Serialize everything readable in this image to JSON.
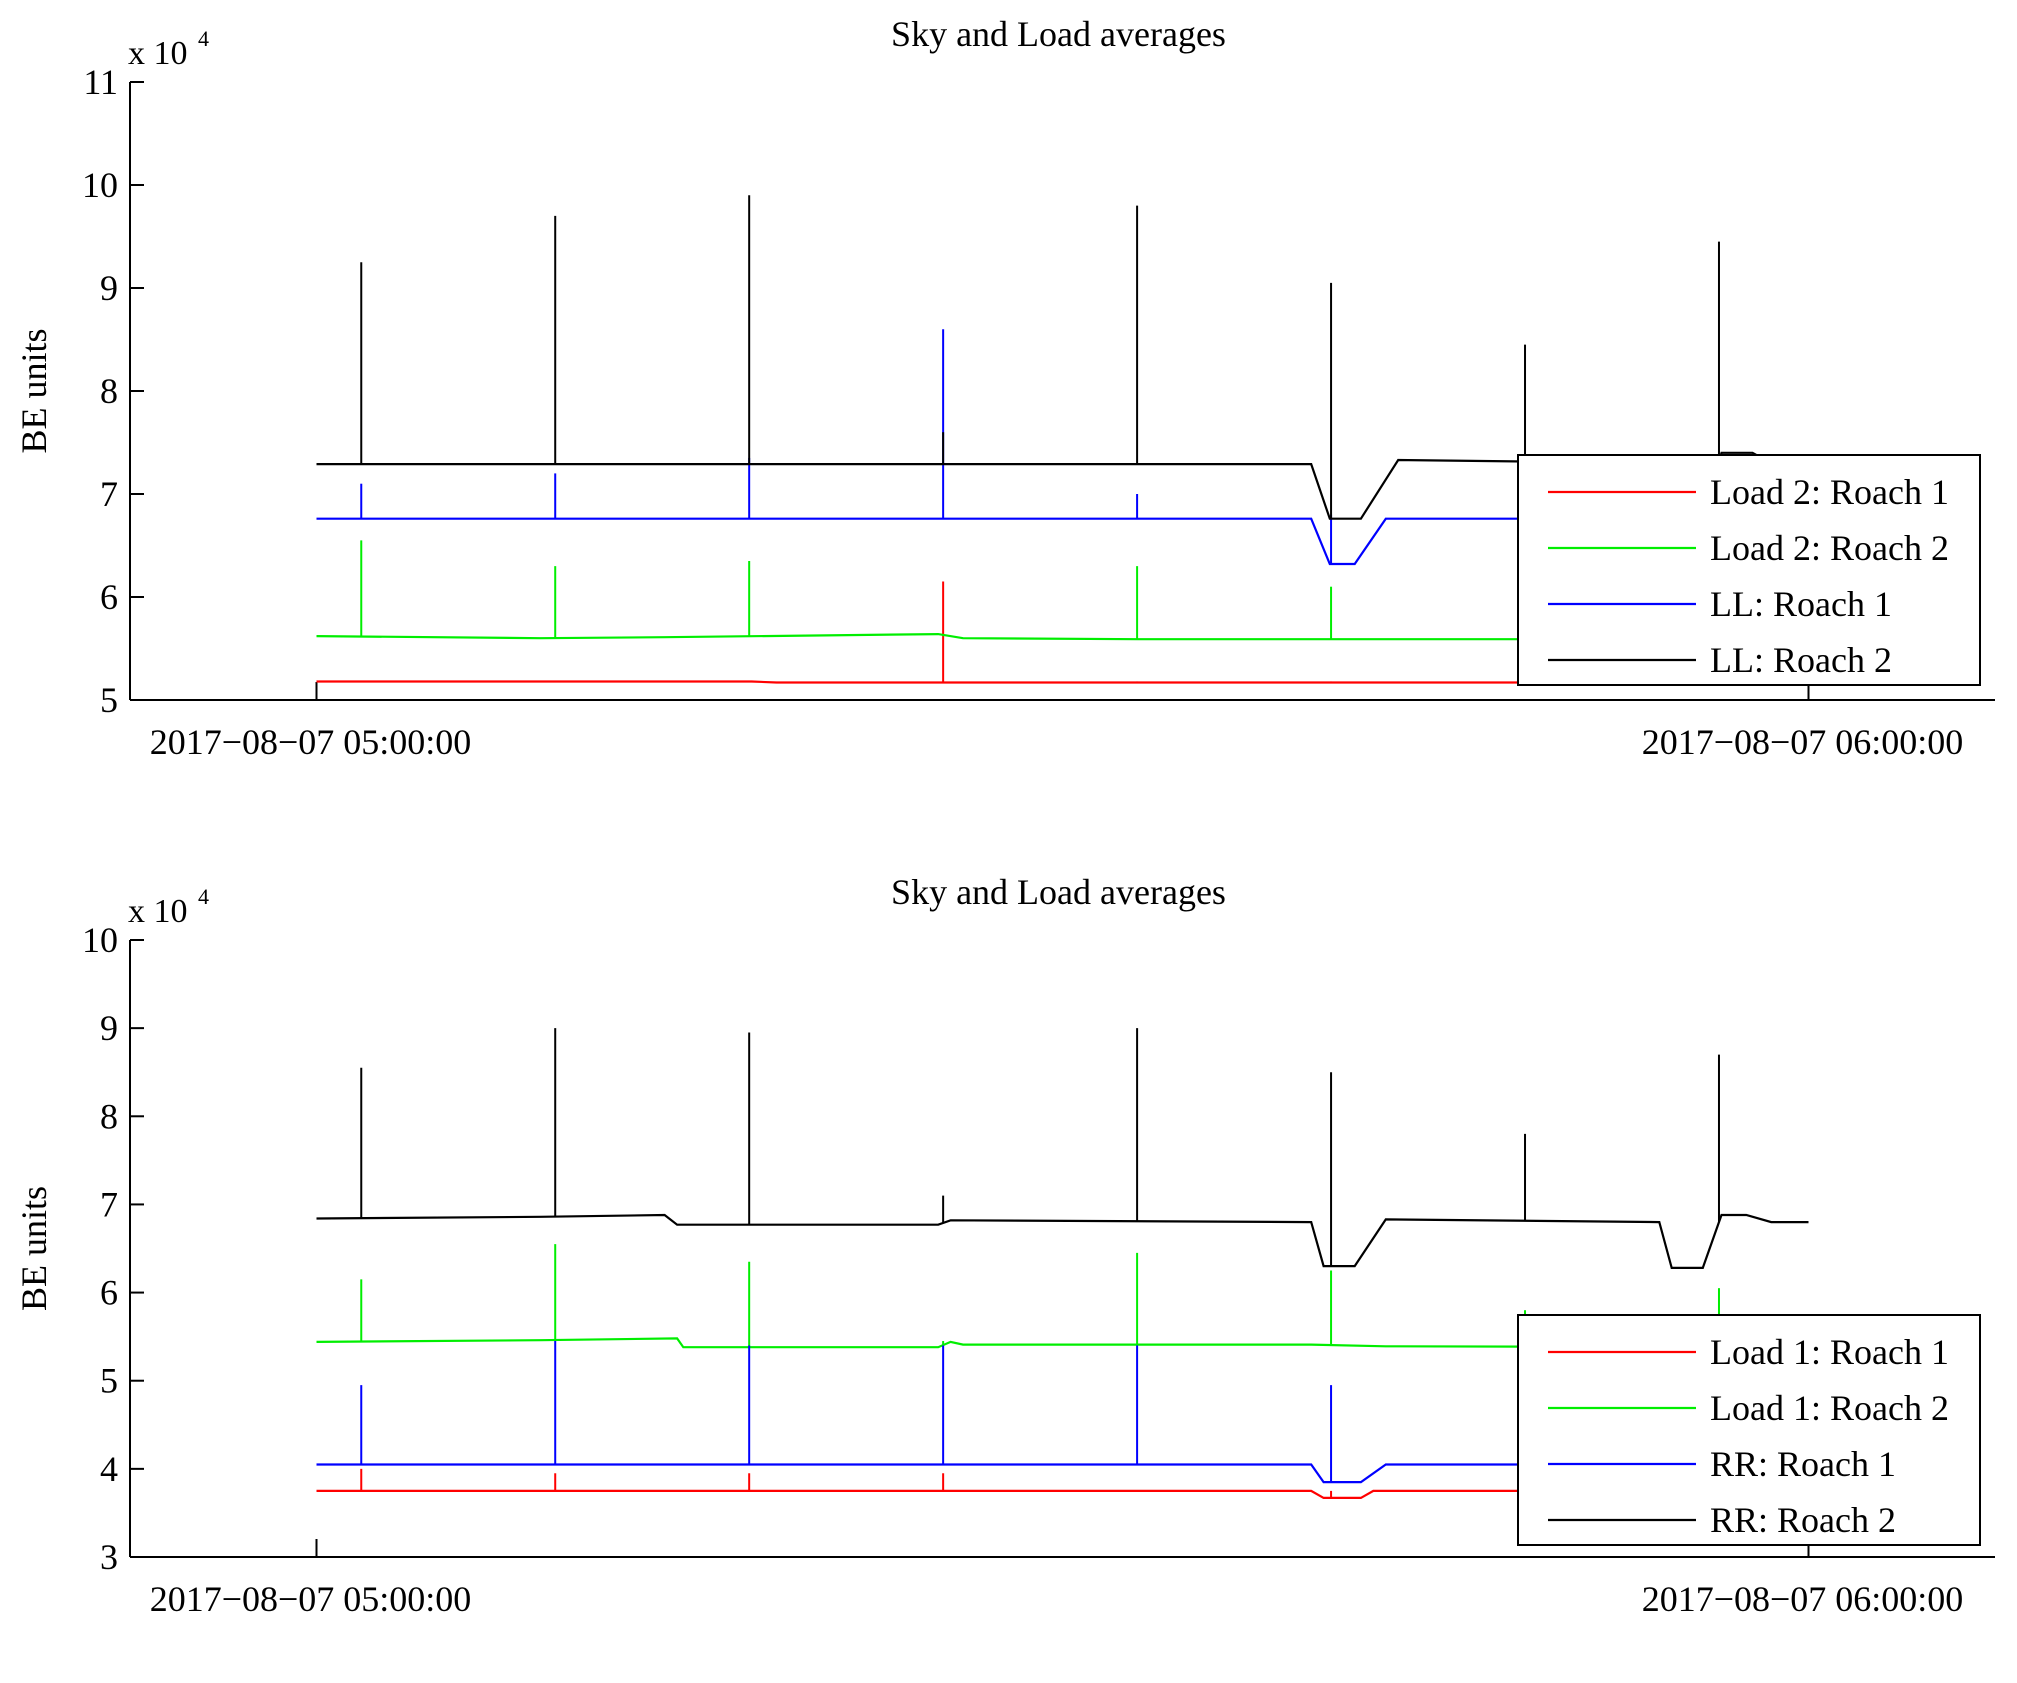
{
  "chart_data": [
    {
      "type": "line",
      "title": "Sky and Load averages",
      "ylabel": "BE units",
      "exponent_base": "x 10",
      "exponent_power": "4",
      "ylim": [
        5,
        11
      ],
      "yticks": [
        "5",
        "6",
        "7",
        "8",
        "9",
        "10",
        "11"
      ],
      "xlim": [
        "2017-08-07 04:52:30",
        "2017-08-07 06:07:30"
      ],
      "xticks": [
        {
          "t": "2017-08-07 05:00:00",
          "label": "2017−08−07 05:00:00"
        },
        {
          "t": "2017-08-07 06:00:00",
          "label": "2017−08−07 06:00:00"
        }
      ],
      "data_end": "2017-08-07 06:00:00",
      "spike_times": [
        "05:01:48",
        "05:09:36",
        "05:17:24",
        "05:25:12",
        "05:33:00",
        "05:40:48",
        "05:48:36",
        "05:56:24"
      ],
      "legend": {
        "position": "lower-right"
      },
      "series": [
        {
          "name": "Load 2: Roach 1",
          "color": "#ff0000",
          "points": [
            [
              "05:00:00",
              5.18
            ],
            [
              "05:17:30",
              5.18
            ],
            [
              "05:18:30",
              5.17
            ],
            [
              "06:00:00",
              5.17
            ]
          ],
          "spikes": [
            [
              "05:01:48",
              5.18
            ],
            [
              "05:09:36",
              5.18
            ],
            [
              "05:17:24",
              5.18
            ],
            [
              "05:25:12",
              6.15
            ],
            [
              "05:33:00",
              5.18
            ],
            [
              "05:40:48",
              5.18
            ],
            [
              "05:48:36",
              5.18
            ],
            [
              "05:56:24",
              5.18
            ]
          ]
        },
        {
          "name": "Load 2: Roach 2",
          "color": "#00ee00",
          "points": [
            [
              "05:00:00",
              5.62
            ],
            [
              "05:09:00",
              5.6
            ],
            [
              "05:14:00",
              5.61
            ],
            [
              "05:25:00",
              5.64
            ],
            [
              "05:26:00",
              5.6
            ],
            [
              "05:33:00",
              5.59
            ],
            [
              "06:00:00",
              5.59
            ]
          ],
          "spikes": [
            [
              "05:01:48",
              6.55
            ],
            [
              "05:09:36",
              6.3
            ],
            [
              "05:17:24",
              6.35
            ],
            [
              "05:25:12",
              5.62
            ],
            [
              "05:33:00",
              6.3
            ],
            [
              "05:40:48",
              6.1
            ],
            [
              "05:48:36",
              6.15
            ],
            [
              "05:56:24",
              6.4
            ]
          ]
        },
        {
          "name": "LL: Roach 1",
          "color": "#0000ff",
          "points": [
            [
              "05:00:00",
              6.76
            ],
            [
              "05:40:00",
              6.76
            ],
            [
              "05:40:45",
              6.32
            ],
            [
              "05:41:45",
              6.32
            ],
            [
              "05:43:00",
              6.76
            ],
            [
              "05:54:00",
              6.76
            ],
            [
              "05:54:30",
              6.32
            ],
            [
              "05:55:45",
              6.32
            ],
            [
              "05:56:30",
              6.78
            ],
            [
              "05:57:30",
              6.78
            ],
            [
              "05:58:30",
              6.75
            ],
            [
              "06:00:00",
              6.75
            ]
          ],
          "spikes": [
            [
              "05:01:48",
              7.1
            ],
            [
              "05:09:36",
              7.2
            ],
            [
              "05:17:24",
              7.35
            ],
            [
              "05:25:12",
              8.6
            ],
            [
              "05:33:00",
              7.0
            ],
            [
              "05:40:48",
              6.8
            ],
            [
              "05:48:36",
              7.3
            ],
            [
              "05:56:24",
              7.25
            ]
          ]
        },
        {
          "name": "LL: Roach 2",
          "color": "#000000",
          "points": [
            [
              "05:00:00",
              7.29
            ],
            [
              "05:40:00",
              7.29
            ],
            [
              "05:40:45",
              6.76
            ],
            [
              "05:42:00",
              6.76
            ],
            [
              "05:43:30",
              7.33
            ],
            [
              "05:54:00",
              7.3
            ],
            [
              "05:54:30",
              6.76
            ],
            [
              "05:55:45",
              6.76
            ],
            [
              "05:56:30",
              7.4
            ],
            [
              "05:57:45",
              7.4
            ],
            [
              "05:58:30",
              7.3
            ],
            [
              "06:00:00",
              7.3
            ]
          ],
          "spikes": [
            [
              "05:01:48",
              9.25
            ],
            [
              "05:09:36",
              9.7
            ],
            [
              "05:17:24",
              9.9
            ],
            [
              "05:25:12",
              7.6
            ],
            [
              "05:33:00",
              9.8
            ],
            [
              "05:40:48",
              9.05
            ],
            [
              "05:48:36",
              8.45
            ],
            [
              "05:56:24",
              9.45
            ]
          ]
        }
      ]
    },
    {
      "type": "line",
      "title": "Sky and Load averages",
      "ylabel": "BE units",
      "exponent_base": "x 10",
      "exponent_power": "4",
      "ylim": [
        3,
        10
      ],
      "yticks": [
        "3",
        "4",
        "5",
        "6",
        "7",
        "8",
        "9",
        "10"
      ],
      "xlim": [
        "2017-08-07 04:52:30",
        "2017-08-07 06:07:30"
      ],
      "xticks": [
        {
          "t": "2017-08-07 05:00:00",
          "label": "2017−08−07 05:00:00"
        },
        {
          "t": "2017-08-07 06:00:00",
          "label": "2017−08−07 06:00:00"
        }
      ],
      "data_end": "2017-08-07 06:00:00",
      "spike_times": [
        "05:01:48",
        "05:09:36",
        "05:17:24",
        "05:25:12",
        "05:33:00",
        "05:40:48",
        "05:48:36",
        "05:56:24"
      ],
      "legend": {
        "position": "lower-right"
      },
      "series": [
        {
          "name": "Load 1: Roach 1",
          "color": "#ff0000",
          "points": [
            [
              "05:00:00",
              3.75
            ],
            [
              "05:40:00",
              3.75
            ],
            [
              "05:40:30",
              3.67
            ],
            [
              "05:42:00",
              3.67
            ],
            [
              "05:42:30",
              3.75
            ],
            [
              "05:54:00",
              3.75
            ],
            [
              "05:54:30",
              3.67
            ],
            [
              "05:56:00",
              3.67
            ],
            [
              "05:56:30",
              3.75
            ],
            [
              "06:00:00",
              3.75
            ]
          ],
          "spikes": [
            [
              "05:01:48",
              4.0
            ],
            [
              "05:09:36",
              3.95
            ],
            [
              "05:17:24",
              3.95
            ],
            [
              "05:25:12",
              3.95
            ],
            [
              "05:33:00",
              3.75
            ],
            [
              "05:40:48",
              3.75
            ],
            [
              "05:48:36",
              3.75
            ],
            [
              "05:56:24",
              3.9
            ]
          ]
        },
        {
          "name": "Load 1: Roach 2",
          "color": "#00ee00",
          "points": [
            [
              "05:00:00",
              5.44
            ],
            [
              "05:09:00",
              5.46
            ],
            [
              "05:14:30",
              5.48
            ],
            [
              "05:14:45",
              5.38
            ],
            [
              "05:25:00",
              5.38
            ],
            [
              "05:25:30",
              5.44
            ],
            [
              "05:26:00",
              5.41
            ],
            [
              "05:40:00",
              5.41
            ],
            [
              "05:43:00",
              5.39
            ],
            [
              "06:00:00",
              5.38
            ]
          ],
          "spikes": [
            [
              "05:01:48",
              6.15
            ],
            [
              "05:09:36",
              6.55
            ],
            [
              "05:17:24",
              6.35
            ],
            [
              "05:25:12",
              5.45
            ],
            [
              "05:33:00",
              6.45
            ],
            [
              "05:40:48",
              6.25
            ],
            [
              "05:48:36",
              5.8
            ],
            [
              "05:56:24",
              6.05
            ]
          ]
        },
        {
          "name": "RR: Roach 1",
          "color": "#0000ff",
          "points": [
            [
              "05:00:00",
              4.05
            ],
            [
              "05:40:00",
              4.05
            ],
            [
              "05:40:30",
              3.85
            ],
            [
              "05:42:00",
              3.85
            ],
            [
              "05:43:00",
              4.05
            ],
            [
              "05:54:00",
              4.05
            ],
            [
              "05:54:30",
              3.85
            ],
            [
              "05:55:45",
              3.85
            ],
            [
              "05:56:30",
              4.08
            ],
            [
              "05:57:30",
              4.08
            ],
            [
              "05:58:30",
              4.05
            ],
            [
              "06:00:00",
              4.05
            ]
          ],
          "spikes": [
            [
              "05:01:48",
              4.95
            ],
            [
              "05:09:36",
              5.45
            ],
            [
              "05:17:24",
              5.4
            ],
            [
              "05:25:12",
              5.4
            ],
            [
              "05:33:00",
              5.4
            ],
            [
              "05:40:48",
              4.95
            ],
            [
              "05:48:36",
              4.6
            ],
            [
              "05:56:24",
              4.95
            ]
          ]
        },
        {
          "name": "RR: Roach 2",
          "color": "#000000",
          "points": [
            [
              "05:00:00",
              6.84
            ],
            [
              "05:09:00",
              6.86
            ],
            [
              "05:14:00",
              6.88
            ],
            [
              "05:14:30",
              6.77
            ],
            [
              "05:25:00",
              6.77
            ],
            [
              "05:25:30",
              6.82
            ],
            [
              "05:40:00",
              6.8
            ],
            [
              "05:40:30",
              6.3
            ],
            [
              "05:41:45",
              6.3
            ],
            [
              "05:43:00",
              6.83
            ],
            [
              "05:54:00",
              6.8
            ],
            [
              "05:54:30",
              6.28
            ],
            [
              "05:55:45",
              6.28
            ],
            [
              "05:56:30",
              6.88
            ],
            [
              "05:57:30",
              6.88
            ],
            [
              "05:58:30",
              6.8
            ],
            [
              "06:00:00",
              6.8
            ]
          ],
          "spikes": [
            [
              "05:01:48",
              8.55
            ],
            [
              "05:09:36",
              9.0
            ],
            [
              "05:17:24",
              8.95
            ],
            [
              "05:25:12",
              7.1
            ],
            [
              "05:33:00",
              9.0
            ],
            [
              "05:40:48",
              8.5
            ],
            [
              "05:48:36",
              7.8
            ],
            [
              "05:56:24",
              8.7
            ]
          ]
        }
      ]
    }
  ]
}
